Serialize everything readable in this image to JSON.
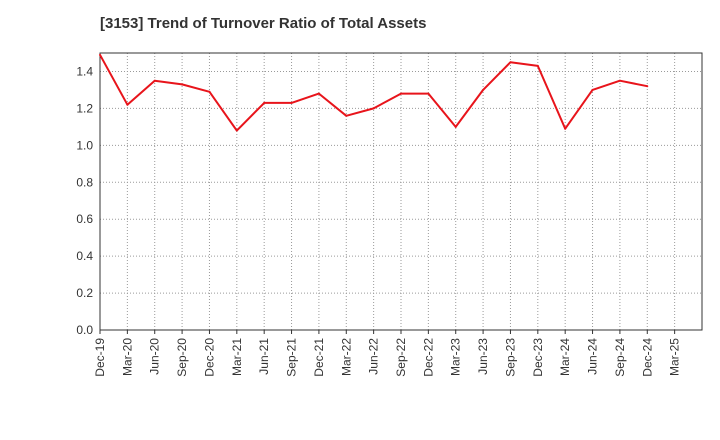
{
  "chart_data": {
    "type": "line",
    "title": "[3153]  Trend of Turnover Ratio of Total Assets",
    "xlabel": "",
    "ylabel": "",
    "ylim": [
      0,
      1.5
    ],
    "yticks": [
      "0.0",
      "0.2",
      "0.4",
      "0.6",
      "0.8",
      "1.0",
      "1.2",
      "1.4"
    ],
    "x_tick_labels": [
      "Dec-19",
      "Mar-20",
      "Jun-20",
      "Sep-20",
      "Dec-20",
      "Mar-21",
      "Jun-21",
      "Sep-21",
      "Dec-21",
      "Mar-22",
      "Jun-22",
      "Sep-22",
      "Dec-22",
      "Mar-23",
      "Jun-23",
      "Sep-23",
      "Dec-23",
      "Mar-24",
      "Jun-24",
      "Sep-24",
      "Dec-24",
      "Mar-25"
    ],
    "grid": true,
    "series": [
      {
        "color": "#e8141b",
        "x": [
          "Dec-19",
          "Mar-20",
          "Jun-20",
          "Sep-20",
          "Dec-20",
          "Mar-21",
          "Jun-21",
          "Sep-21",
          "Dec-21",
          "Mar-22",
          "Jun-22",
          "Sep-22",
          "Dec-22",
          "Mar-23",
          "Jun-23",
          "Sep-23",
          "Dec-23",
          "Mar-24",
          "Jun-24",
          "Sep-24",
          "Dec-24"
        ],
        "values": [
          1.49,
          1.22,
          1.35,
          1.33,
          1.29,
          1.08,
          1.23,
          1.23,
          1.28,
          1.16,
          1.2,
          1.28,
          1.28,
          1.1,
          1.3,
          1.45,
          1.43,
          1.09,
          1.3,
          1.35,
          1.32
        ]
      }
    ]
  }
}
